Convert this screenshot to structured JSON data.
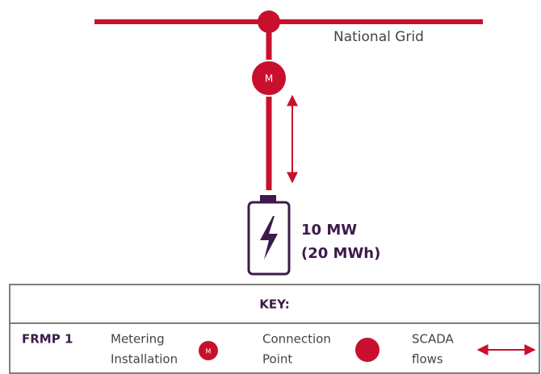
{
  "grid": {
    "label": "National Grid"
  },
  "meter_icon": "M",
  "battery": {
    "power": "10 MW",
    "energy": "(20 MWh)"
  },
  "key": {
    "title": "KEY:",
    "party": "FRMP 1",
    "items": [
      {
        "lines": [
          "Metering",
          "Installation"
        ],
        "icon": "M"
      },
      {
        "lines": [
          "Connection",
          "Point"
        ]
      },
      {
        "lines": [
          "SCADA",
          "flows"
        ]
      }
    ]
  }
}
